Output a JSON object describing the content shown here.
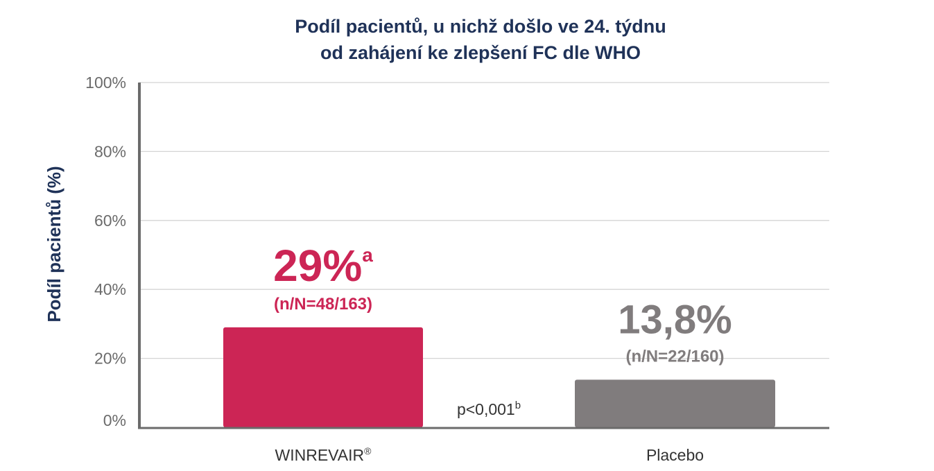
{
  "chart_data": {
    "type": "bar",
    "title_lines": [
      "Podíl pacientů, u nichž došlo ve 24. týdnu",
      "od zahájení ke zlepšení FC dle WHO"
    ],
    "xlabel": "",
    "ylabel": "Podíl pacientů (%)",
    "ylim": [
      0,
      100
    ],
    "yticks": [
      0,
      20,
      40,
      60,
      80,
      100
    ],
    "ytick_labels": [
      "0%",
      "20%",
      "40%",
      "60%",
      "80%",
      "100%"
    ],
    "grid": true,
    "categories": [
      {
        "label": "WINREVAIR",
        "label_sup": "®"
      },
      {
        "label": "Placebo",
        "label_sup": ""
      }
    ],
    "values": [
      29,
      13.8
    ],
    "value_labels": [
      {
        "text": "29%",
        "sup": "a",
        "sub": "(n/N=48/163)"
      },
      {
        "text": "13,8%",
        "sup": "",
        "sub": "(n/N=22/160)"
      }
    ],
    "annotation": {
      "text": "p<0,001",
      "sup": "b"
    },
    "colors": {
      "title": "#1f3258",
      "ylabel": "#1f3258",
      "tick": "#6b6b6b",
      "axis": "#6b6b6b",
      "grid": "#d4d4d4",
      "bar_winrevair": "#cc2555",
      "bar_placebo": "#807c7d",
      "label_winrevair": "#cc2555",
      "label_placebo": "#807c7d",
      "annotation": "#333333"
    }
  }
}
